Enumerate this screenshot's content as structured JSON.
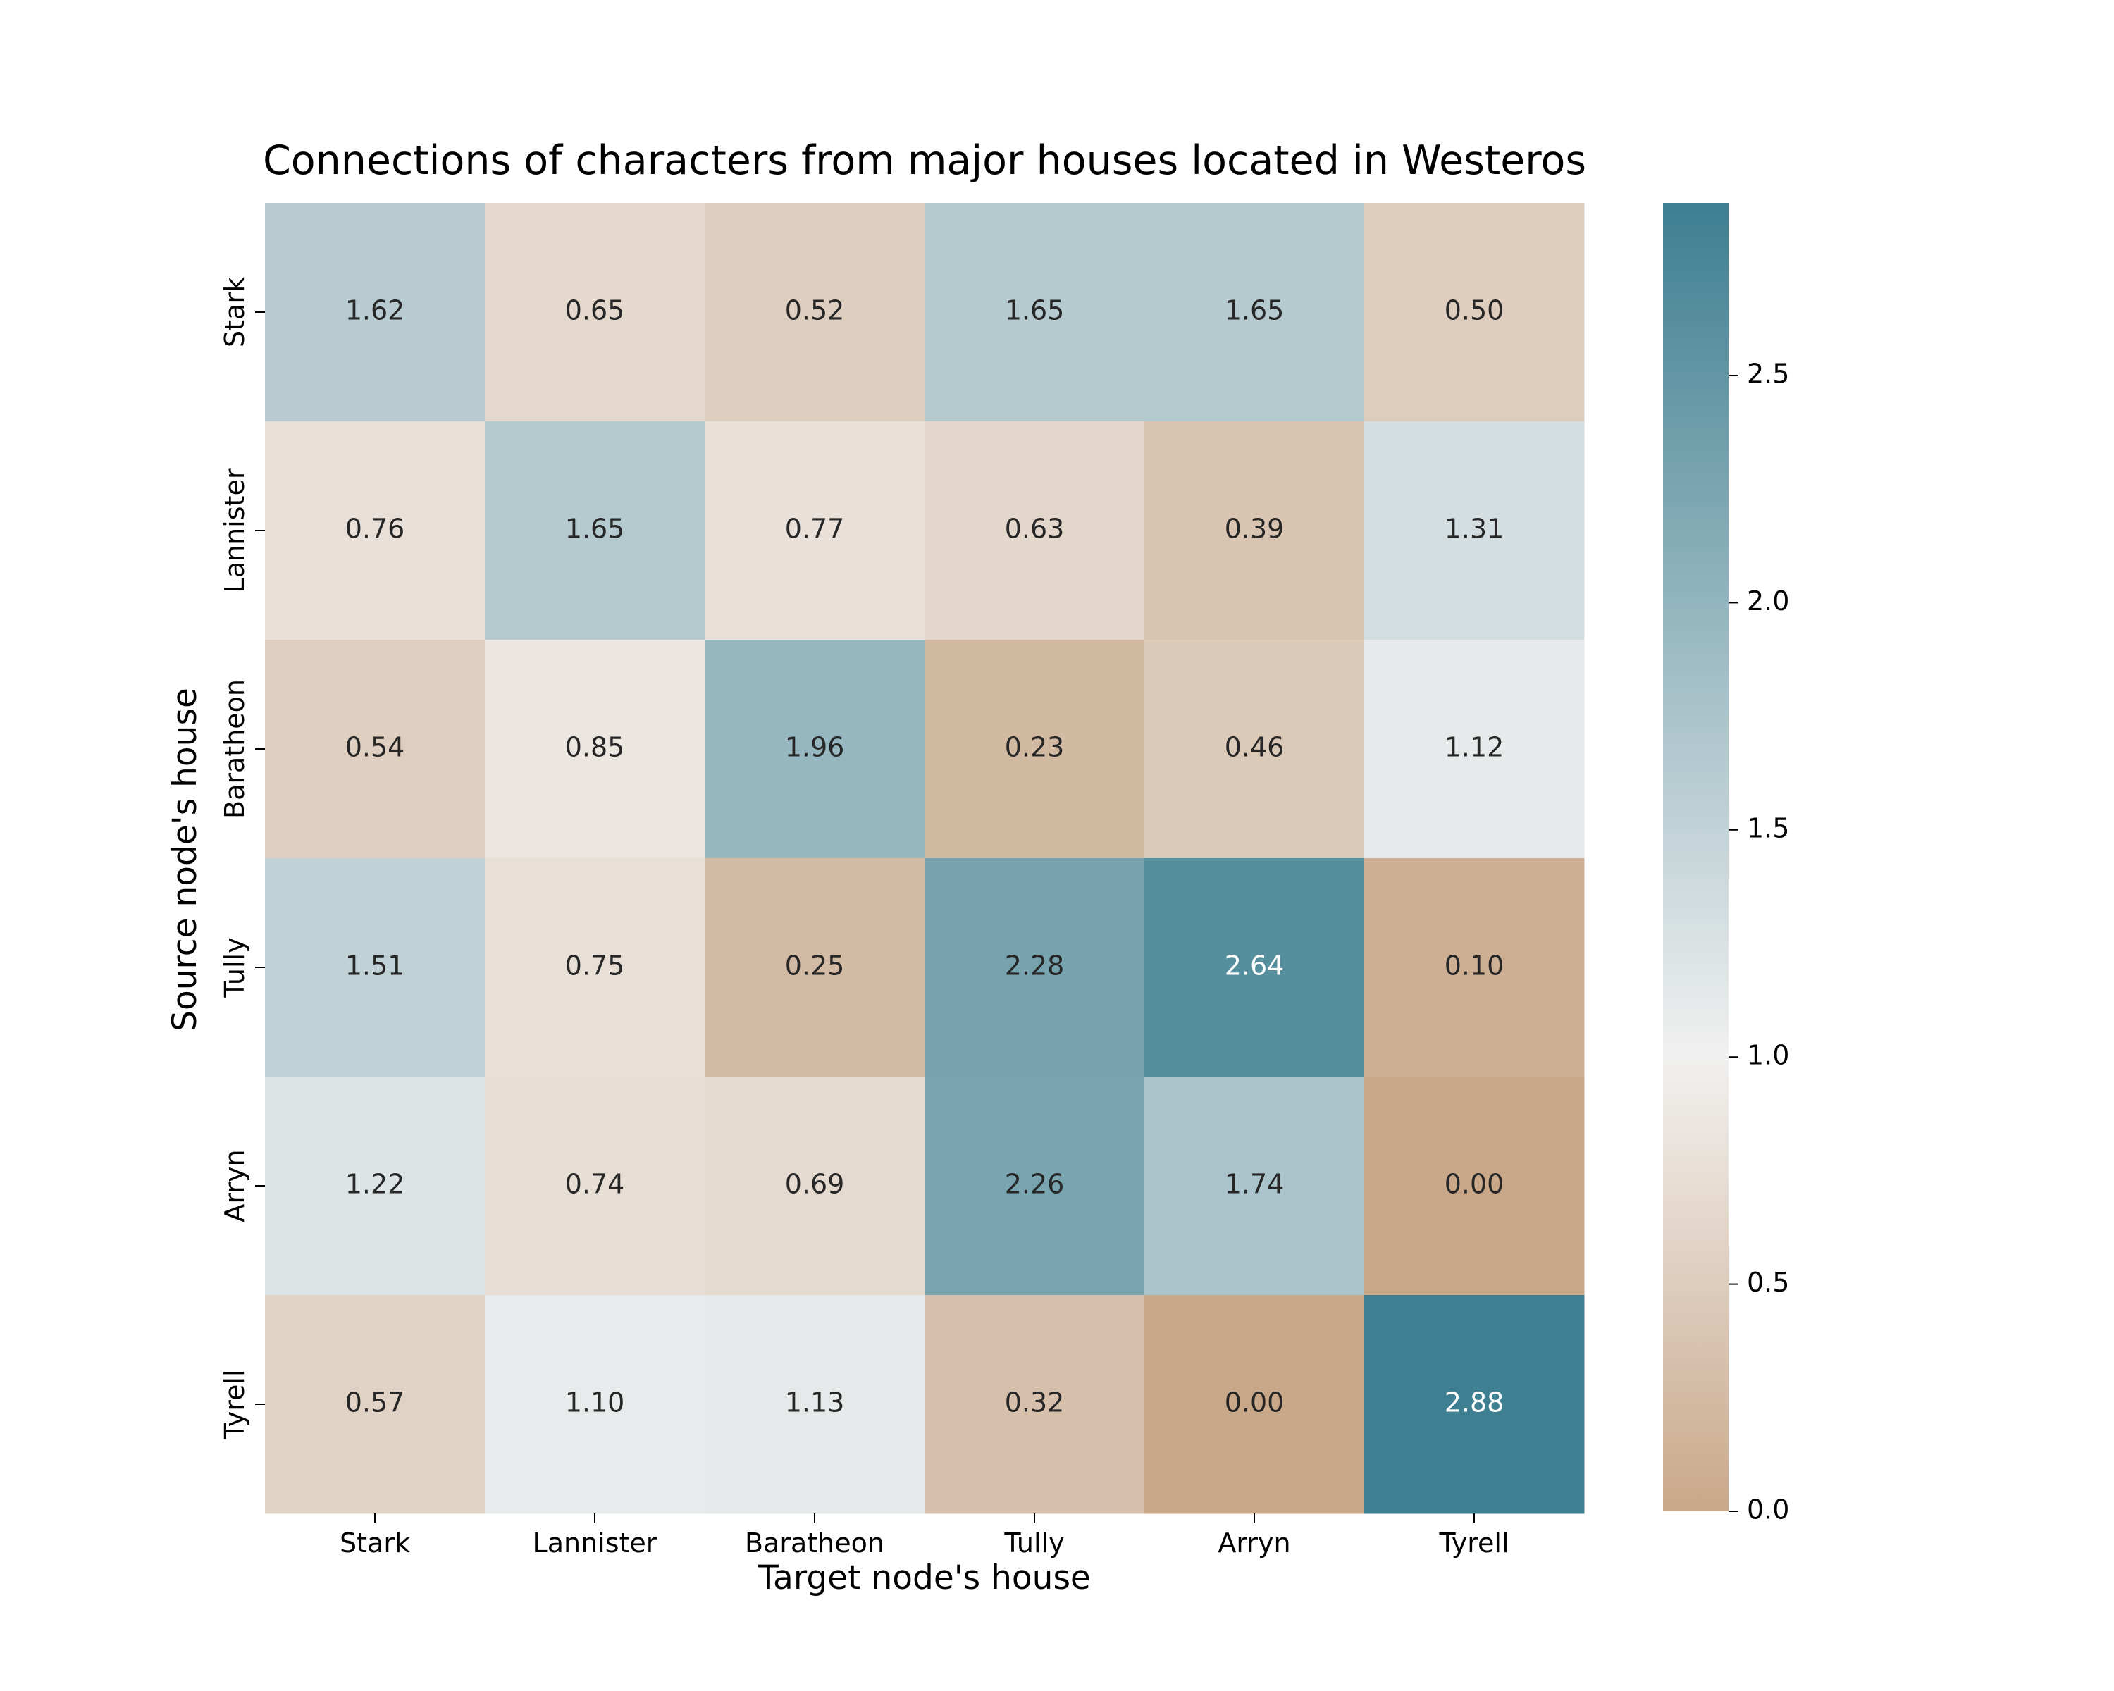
{
  "chart_data": {
    "type": "heatmap",
    "title": "Connections of characters from major houses located in Westeros",
    "xlabel": "Target node's house",
    "ylabel": "Source node's house",
    "x_categories": [
      "Stark",
      "Lannister",
      "Baratheon",
      "Tully",
      "Arryn",
      "Tyrell"
    ],
    "y_categories": [
      "Stark",
      "Lannister",
      "Baratheon",
      "Tully",
      "Arryn",
      "Tyrell"
    ],
    "values": [
      [
        1.62,
        0.65,
        0.52,
        1.65,
        1.65,
        0.5
      ],
      [
        0.76,
        1.65,
        0.77,
        0.63,
        0.39,
        1.31
      ],
      [
        0.54,
        0.85,
        1.96,
        0.23,
        0.46,
        1.12
      ],
      [
        1.51,
        0.75,
        0.25,
        2.28,
        2.64,
        0.1
      ],
      [
        1.22,
        0.74,
        0.69,
        2.26,
        1.74,
        0.0
      ],
      [
        0.57,
        1.1,
        1.13,
        0.32,
        0.0,
        2.88
      ]
    ],
    "colorbar": {
      "vmin": 0.0,
      "vmax": 2.88,
      "center": 1.0,
      "ticks": [
        "0.0",
        "0.5",
        "1.0",
        "1.5",
        "2.0",
        "2.5"
      ],
      "low_color": "#c9a88a",
      "mid_color": "#f2f1f0",
      "high_color": "#3e7f91"
    },
    "value_format": "2 decimals"
  }
}
